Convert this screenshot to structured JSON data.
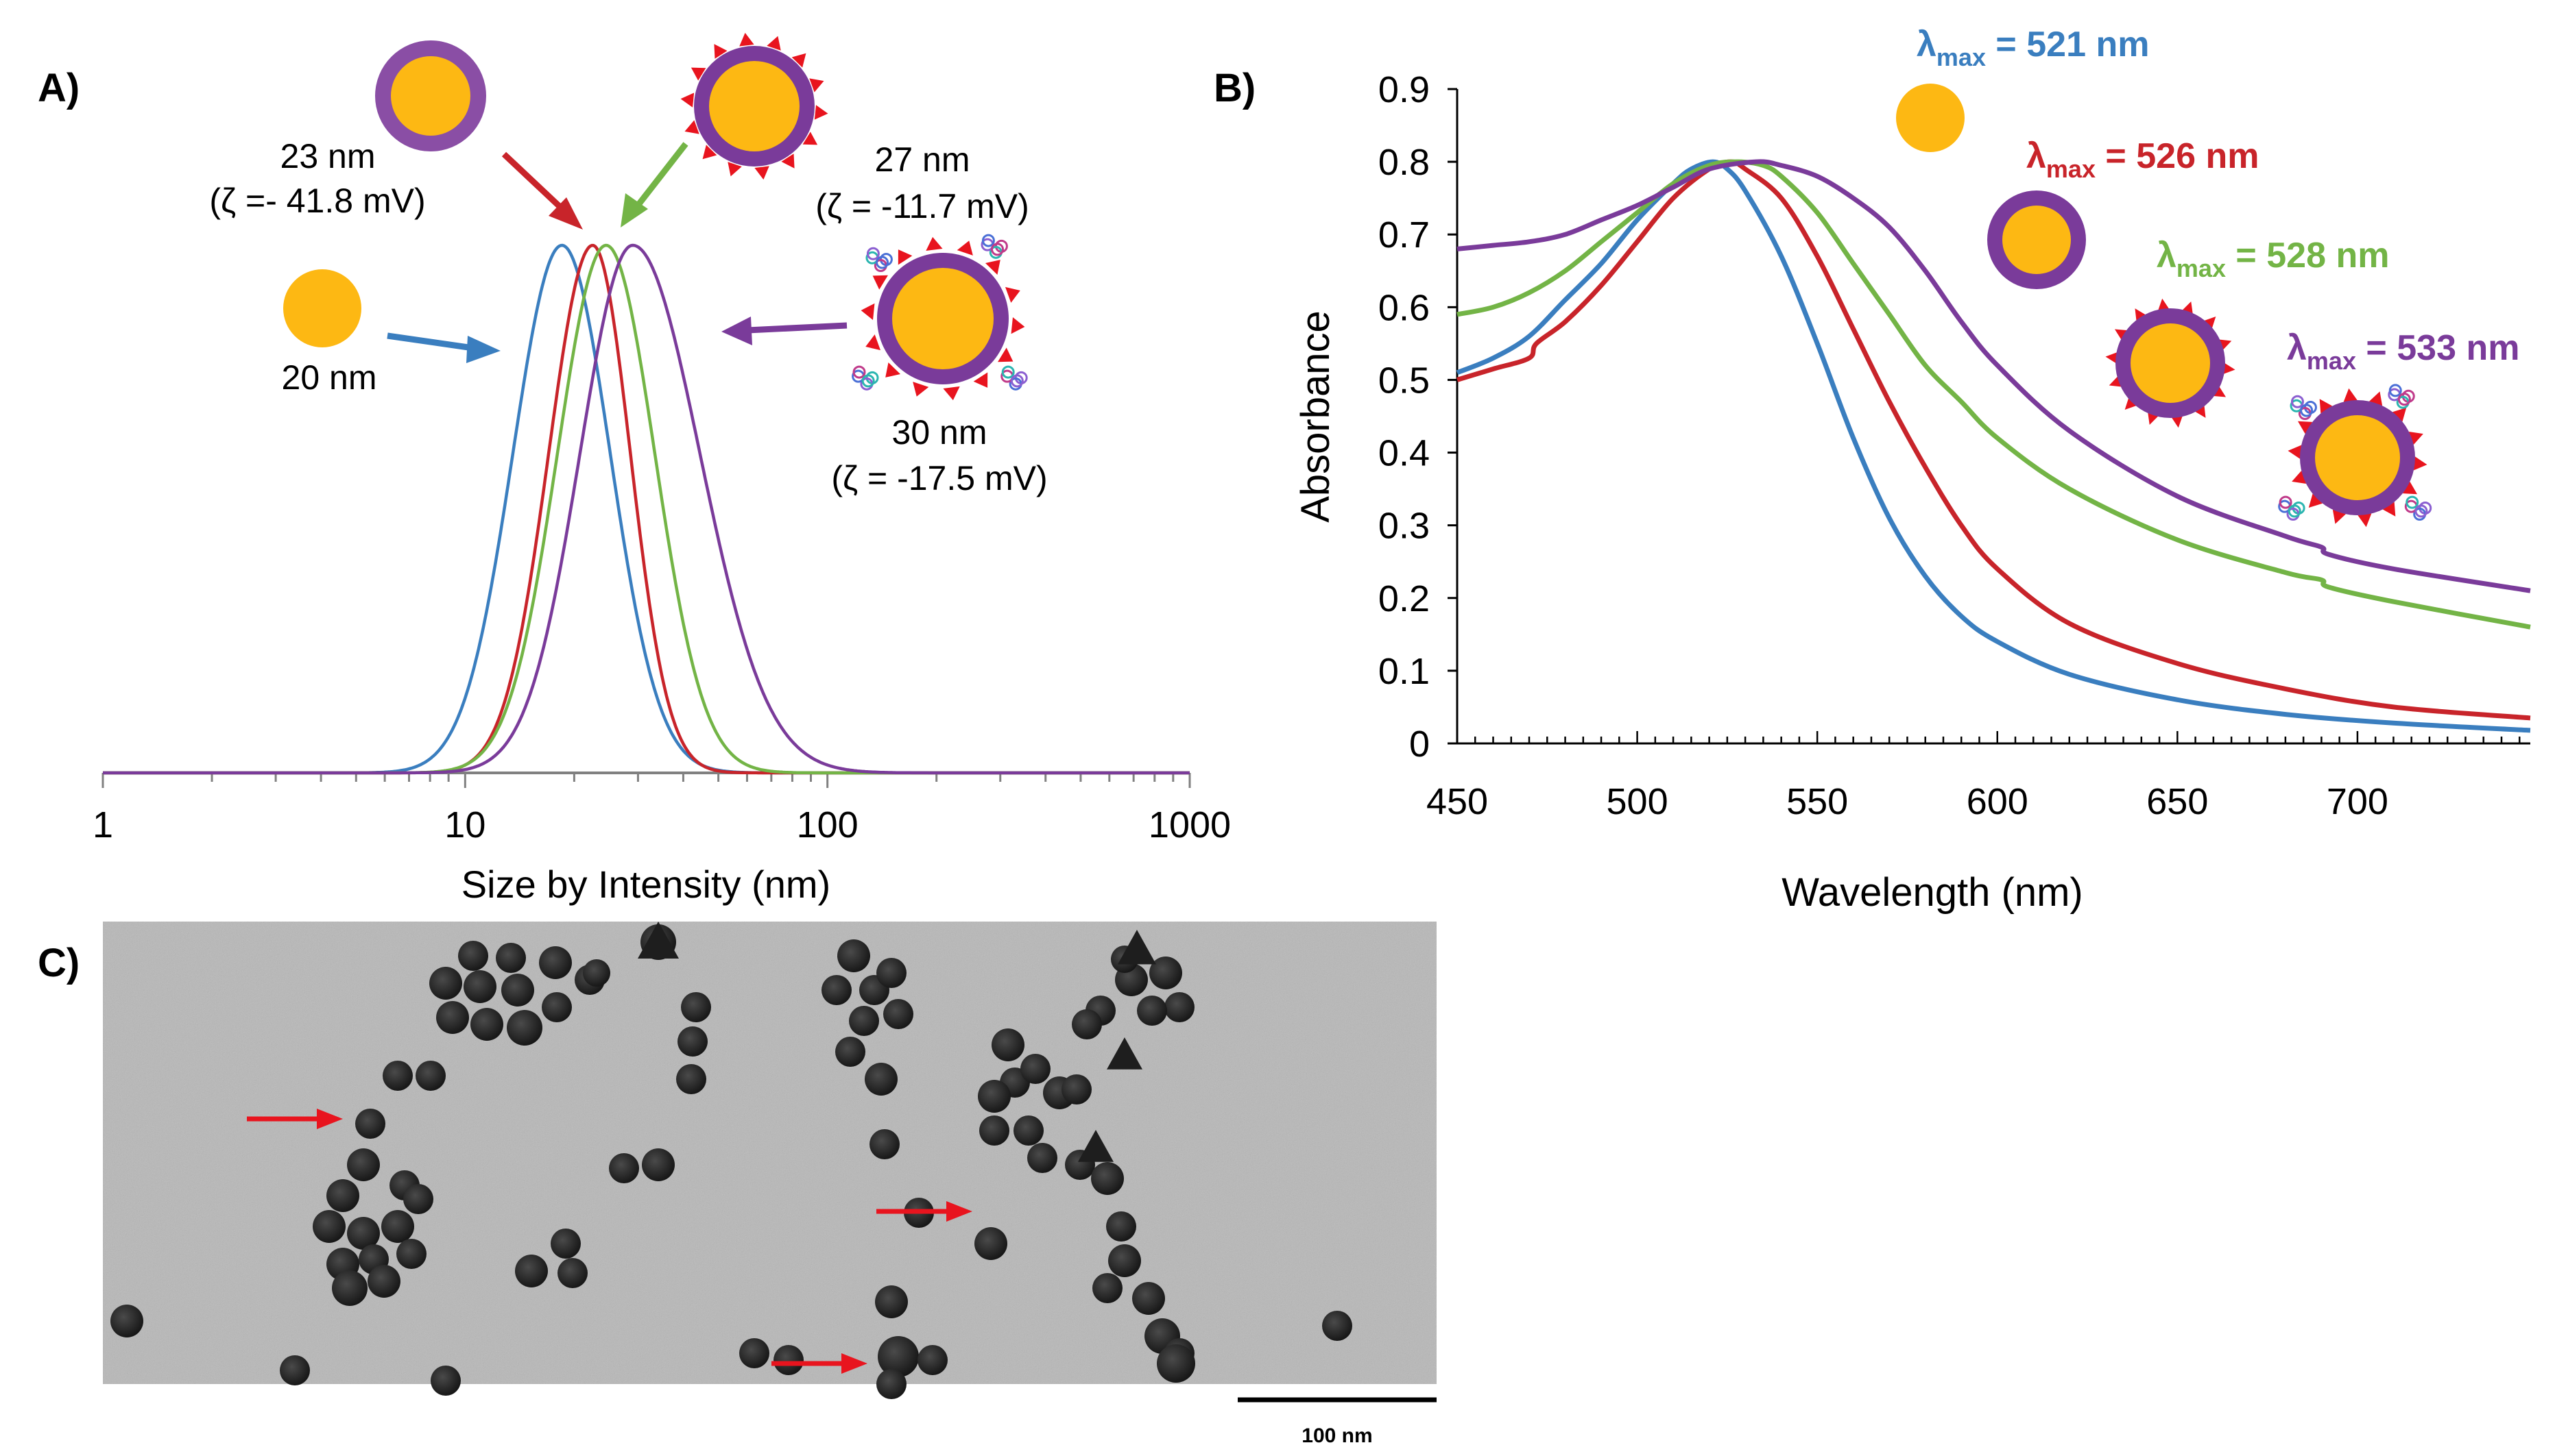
{
  "panels": {
    "a_label": "A)",
    "b_label": "B)",
    "c_label": "C)"
  },
  "colors": {
    "bare": "#3a7ebf",
    "citrate": "#c8242a",
    "ligand": "#73b446",
    "protein": "#7a3b9a",
    "core": "#fdb813",
    "shell": "#7a3b9a",
    "spike": "#e8141e"
  },
  "icons": {
    "bare": "gold-nanoparticle-icon",
    "coated": "coated-nanoparticle-icon",
    "ligand": "ligand-nanoparticle-icon",
    "protein": "protein-nanoparticle-icon"
  },
  "annotations_a": {
    "bare_size": "20 nm",
    "coated_size": "23 nm",
    "coated_zeta": "(ζ =- 41.8 mV)",
    "ligand_size": "27 nm",
    "ligand_zeta": "(ζ = -11.7 mV)",
    "protein_size": "30 nm",
    "protein_zeta": "(ζ = -17.5 mV)"
  },
  "annotations_b": {
    "lmax_symbol": "λ",
    "lmax_sub": "max",
    "bare_value": " = 521 nm",
    "coated_value": " = 526 nm",
    "ligand_value": " = 528 nm",
    "protein_value": " = 533 nm"
  },
  "tem": {
    "scale_label": "100 nm"
  },
  "chart_data": [
    {
      "type": "line",
      "panel": "A",
      "xlabel": "Size by Intensity (nm)",
      "ylabel": "",
      "x_scale": "log",
      "xlim": [
        1,
        1000
      ],
      "x_ticks": [
        1,
        10,
        100,
        1000
      ],
      "y_axis_visible": false,
      "grid": false,
      "series": [
        {
          "color": "#3a7ebf",
          "peak": 18.5,
          "lower_bound": 7.5,
          "upper_bound": 45
        },
        {
          "color": "#c8242a",
          "peak": 22.5,
          "lower_bound": 10,
          "upper_bound": 45
        },
        {
          "color": "#73b446",
          "peak": 24.5,
          "lower_bound": 10,
          "upper_bound": 60
        },
        {
          "color": "#7a3b9a",
          "peak": 29,
          "lower_bound": 11,
          "upper_bound": 100
        }
      ]
    },
    {
      "type": "line",
      "panel": "B",
      "xlabel": "Wavelength (nm)",
      "ylabel": "Absorbance",
      "xlim": [
        450,
        748
      ],
      "ylim": [
        0,
        0.9
      ],
      "x_ticks": [
        450,
        500,
        550,
        600,
        650,
        700
      ],
      "y_ticks": [
        0,
        0.1,
        0.2,
        0.3,
        0.4,
        0.5,
        0.6,
        0.7,
        0.8,
        0.9
      ],
      "grid": false,
      "series": [
        {
          "color": "#3a7ebf",
          "x": [
            450,
            460,
            470,
            480,
            490,
            500,
            510,
            515,
            521,
            525,
            530,
            540,
            550,
            560,
            570,
            580,
            590,
            600,
            620,
            650,
            680,
            710,
            748
          ],
          "y": [
            0.51,
            0.53,
            0.56,
            0.61,
            0.66,
            0.72,
            0.77,
            0.79,
            0.8,
            0.79,
            0.76,
            0.67,
            0.55,
            0.42,
            0.31,
            0.23,
            0.175,
            0.14,
            0.095,
            0.06,
            0.04,
            0.028,
            0.018
          ]
        },
        {
          "color": "#c8242a",
          "x": [
            450,
            460,
            470,
            472,
            480,
            490,
            500,
            510,
            520,
            526,
            530,
            540,
            550,
            560,
            570,
            580,
            590,
            600,
            620,
            650,
            680,
            710,
            748
          ],
          "y": [
            0.5,
            0.515,
            0.53,
            0.55,
            0.58,
            0.63,
            0.69,
            0.75,
            0.79,
            0.8,
            0.79,
            0.75,
            0.67,
            0.57,
            0.47,
            0.38,
            0.3,
            0.24,
            0.165,
            0.11,
            0.075,
            0.05,
            0.035
          ]
        },
        {
          "color": "#73b446",
          "x": [
            450,
            460,
            470,
            480,
            490,
            500,
            510,
            520,
            528,
            535,
            540,
            550,
            560,
            570,
            580,
            590,
            600,
            620,
            650,
            680,
            690,
            692,
            710,
            748
          ],
          "y": [
            0.59,
            0.6,
            0.62,
            0.65,
            0.69,
            0.73,
            0.77,
            0.795,
            0.8,
            0.795,
            0.78,
            0.73,
            0.66,
            0.59,
            0.52,
            0.47,
            0.42,
            0.35,
            0.28,
            0.235,
            0.225,
            0.215,
            0.195,
            0.16
          ]
        },
        {
          "color": "#7a3b9a",
          "x": [
            450,
            460,
            470,
            480,
            490,
            500,
            510,
            520,
            533,
            540,
            550,
            560,
            570,
            580,
            590,
            600,
            620,
            650,
            680,
            690,
            692,
            710,
            748
          ],
          "y": [
            0.68,
            0.685,
            0.69,
            0.7,
            0.72,
            0.74,
            0.765,
            0.79,
            0.8,
            0.795,
            0.78,
            0.75,
            0.71,
            0.65,
            0.58,
            0.52,
            0.43,
            0.34,
            0.285,
            0.27,
            0.26,
            0.24,
            0.21
          ]
        }
      ]
    }
  ]
}
